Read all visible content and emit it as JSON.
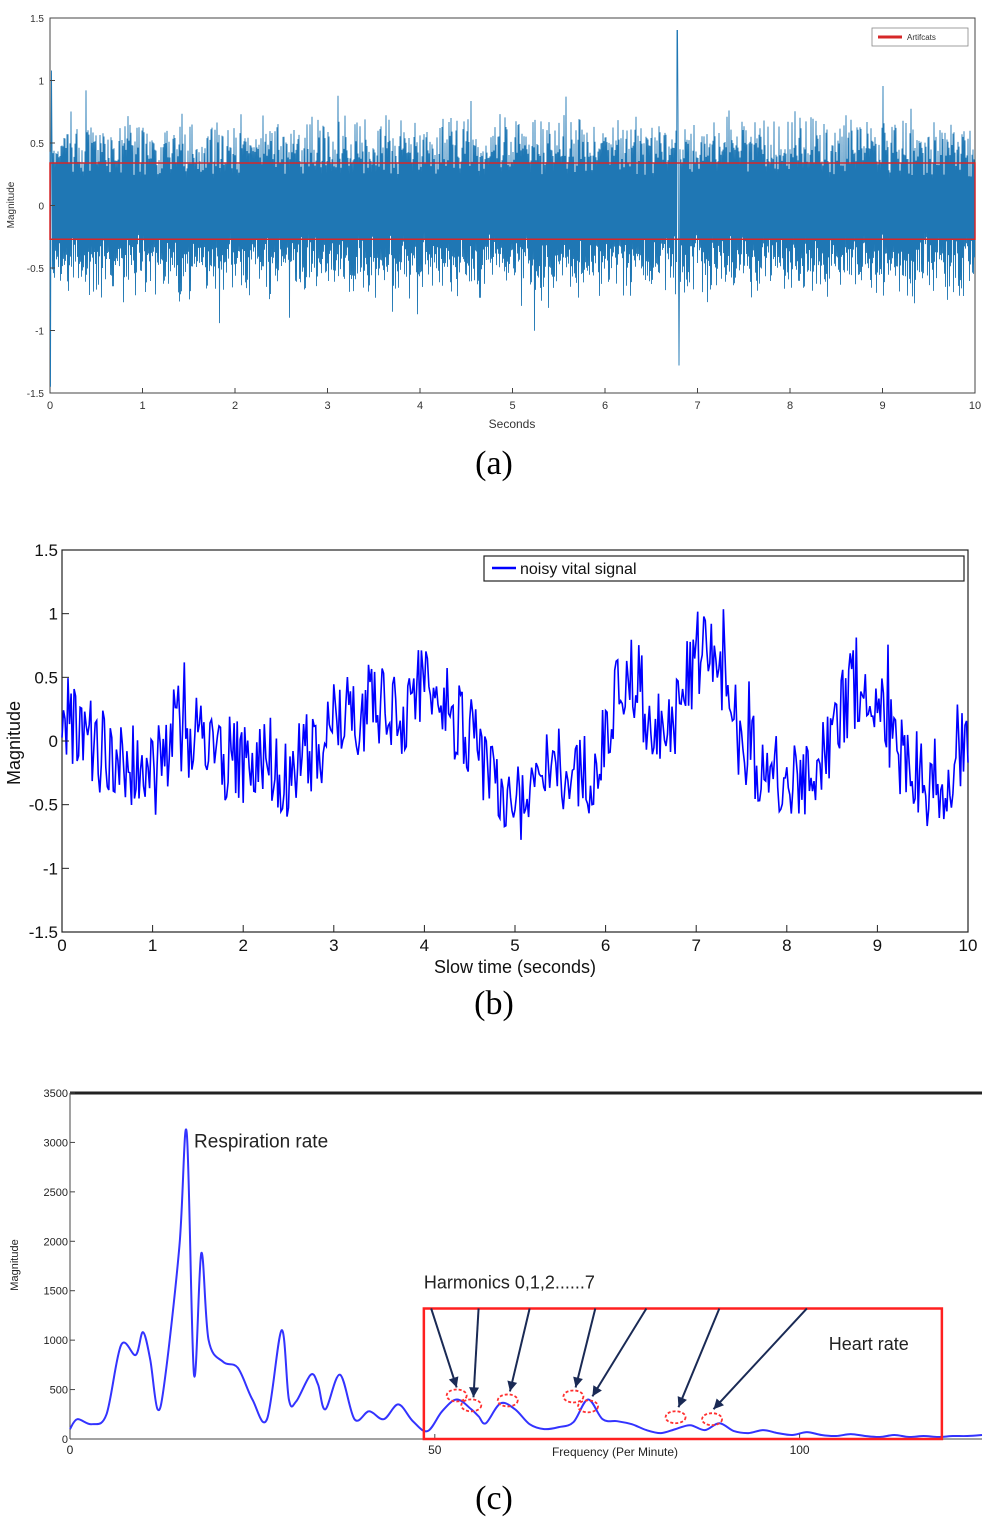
{
  "panels": [
    {
      "caption": "(a)",
      "chart_data": {
        "type": "line",
        "title": "",
        "xlabel": "Seconds",
        "ylabel": "Magnitude",
        "xlim": [
          0,
          10
        ],
        "ylim": [
          -1.5,
          1.5
        ],
        "xticks": [
          "0",
          "1",
          "2",
          "3",
          "4",
          "5",
          "6",
          "7",
          "8",
          "9",
          "10"
        ],
        "yticks": [
          "1.5",
          "1",
          "0.5",
          "0",
          "-0.5",
          "-1",
          "-1.5"
        ],
        "legend": {
          "placement": "top-right",
          "entries": [
            "Artifcats"
          ]
        },
        "series": [
          {
            "name": "",
            "color": "#1f77b4",
            "description_values": {
              "typical_range": [
                -0.75,
                0.8
              ],
              "max_spike": 1.4,
              "min_spike": -1.45
            }
          }
        ],
        "annotations": [
          {
            "type": "rectangle",
            "label": "Artifcats",
            "color": "#d62728",
            "x_range": [
              0,
              10
            ],
            "y_range": [
              -0.27,
              0.34
            ]
          }
        ],
        "grid": false
      }
    },
    {
      "caption": "(b)",
      "chart_data": {
        "type": "line",
        "title": "",
        "xlabel": "Slow time (seconds)",
        "ylabel": "Magnitude",
        "xlim": [
          0,
          10
        ],
        "ylim": [
          -1.5,
          1.5
        ],
        "xticks": [
          "0",
          "1",
          "2",
          "3",
          "4",
          "5",
          "6",
          "7",
          "8",
          "9",
          "10"
        ],
        "yticks": [
          "1.5",
          "1",
          "0.5",
          "0",
          "-0.5",
          "-1",
          "-1.5"
        ],
        "legend": {
          "placement": "top-right",
          "entries": [
            "noisy vital signal"
          ]
        },
        "series": [
          {
            "name": "noisy vital signal",
            "color": "#0000ff",
            "x": [
              0,
              0.25,
              0.5,
              0.75,
              1,
              1.25,
              1.5,
              1.75,
              2,
              2.25,
              2.5,
              2.75,
              3,
              3.25,
              3.5,
              3.75,
              4,
              4.25,
              4.5,
              4.75,
              5,
              5.25,
              5.5,
              5.75,
              6,
              6.25,
              6.5,
              6.75,
              7,
              7.25,
              7.5,
              7.75,
              8,
              8.25,
              8.5,
              8.75,
              9,
              9.25,
              9.5,
              9.75,
              10
            ],
            "y": [
              0.2,
              0.0,
              -0.1,
              -0.2,
              -0.3,
              0.1,
              0.0,
              -0.1,
              -0.2,
              -0.1,
              -0.3,
              -0.1,
              0.1,
              0.2,
              0.3,
              0.2,
              0.5,
              0.3,
              0.0,
              -0.3,
              -0.5,
              -0.3,
              -0.2,
              -0.3,
              0.0,
              0.6,
              0.2,
              0.1,
              0.7,
              0.6,
              0.0,
              -0.2,
              -0.4,
              -0.3,
              0.1,
              0.4,
              0.3,
              -0.1,
              -0.3,
              -0.4,
              0.0
            ]
          }
        ],
        "grid": false
      }
    },
    {
      "caption": "(c)",
      "chart_data": {
        "type": "line",
        "title": "",
        "xlabel": "Frequency (Per Minute)",
        "ylabel": "Magnitude",
        "xlim": [
          0,
          125
        ],
        "ylim": [
          0,
          3500
        ],
        "xticks": [
          "0",
          "50",
          "100"
        ],
        "yticks": [
          "3500",
          "3000",
          "2500",
          "2000",
          "1500",
          "1000",
          "500",
          "0"
        ],
        "series": [
          {
            "name": "",
            "color": "#3333ff",
            "x": [
              0,
              1,
              3,
              5,
              7,
              9,
              10,
              11,
              12,
              13,
              15,
              16,
              17,
              18,
              19,
              21,
              23,
              25,
              27,
              29,
              30,
              31,
              33,
              34,
              35,
              37,
              39,
              41,
              43,
              45,
              47,
              49,
              51,
              53,
              55,
              56,
              57,
              59,
              61,
              63,
              65,
              67,
              69,
              71,
              73,
              75,
              77,
              79,
              81,
              83,
              85,
              87,
              89,
              91,
              93,
              95,
              97,
              99,
              101,
              103,
              105,
              107,
              109,
              111,
              113,
              115,
              117,
              119,
              121,
              123,
              125
            ],
            "y": [
              100,
              200,
              150,
              250,
              950,
              850,
              1080,
              800,
              300,
              600,
              1950,
              3100,
              650,
              1880,
              1000,
              780,
              720,
              400,
              200,
              1100,
              400,
              380,
              650,
              550,
              300,
              650,
              200,
              280,
              200,
              350,
              180,
              80,
              280,
              400,
              300,
              230,
              160,
              360,
              300,
              150,
              100,
              120,
              170,
              400,
              200,
              180,
              150,
              90,
              60,
              100,
              140,
              90,
              160,
              80,
              60,
              90,
              60,
              40,
              70,
              40,
              30,
              50,
              30,
              20,
              40,
              20,
              30,
              20,
              30,
              30,
              40
            ]
          }
        ],
        "annotations": [
          {
            "type": "label",
            "text": "Respiration rate",
            "x": 17,
            "y": 2950
          },
          {
            "type": "label",
            "text": "Harmonics 0,1,2......7",
            "x": 48.5,
            "y": 1520
          },
          {
            "type": "label",
            "text": "Heart rate",
            "x": 104,
            "y": 900
          },
          {
            "type": "rectangle",
            "color": "#ff2020",
            "x_range": [
              48.5,
              119.5
            ],
            "y_range": [
              0,
              1320
            ]
          },
          {
            "type": "circles",
            "color": "#ff3030",
            "points": [
              [
                53,
                420
              ],
              [
                55,
                320
              ],
              [
                60,
                370
              ],
              [
                69,
                410
              ],
              [
                71,
                310
              ],
              [
                83,
                200
              ],
              [
                88,
                180
              ]
            ]
          },
          {
            "type": "arrows",
            "color": "#1a2a55",
            "from_y": 1300,
            "points": [
              [
                49.5,
                53,
                420
              ],
              [
                56,
                55.3,
                320
              ],
              [
                63,
                60.3,
                380
              ],
              [
                72,
                69.3,
                420
              ],
              [
                79,
                71.6,
                330
              ],
              [
                89,
                83.4,
                220
              ],
              [
                101,
                88.2,
                200
              ]
            ]
          }
        ],
        "grid": false
      }
    }
  ]
}
